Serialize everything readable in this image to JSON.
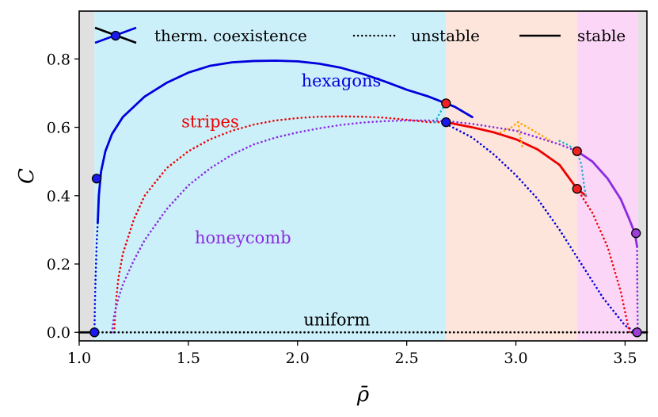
{
  "chart_data": {
    "type": "line",
    "title": "",
    "xlabel": "ρ̄",
    "ylabel": "C",
    "xlim": [
      1.0,
      3.6
    ],
    "ylim": [
      -0.025,
      0.94
    ],
    "x_ticks": [
      1.0,
      1.5,
      2.0,
      2.5,
      3.0,
      3.5
    ],
    "x_tick_labels": [
      "1.0",
      "1.5",
      "2.0",
      "2.5",
      "3.0",
      "3.5"
    ],
    "y_ticks": [
      0.0,
      0.2,
      0.4,
      0.6,
      0.8
    ],
    "y_tick_labels": [
      "0.0",
      "0.2",
      "0.4",
      "0.6",
      "0.8"
    ],
    "grid": false,
    "legend_position": "top",
    "legend": [
      {
        "label": "therm. coexistence",
        "style": "marker"
      },
      {
        "label": "unstable",
        "style": "dotted"
      },
      {
        "label": "stable",
        "style": "solid"
      }
    ],
    "regions": [
      {
        "x0": 1.0,
        "x1": 1.07,
        "color": "#e0e0e0"
      },
      {
        "x0": 1.07,
        "x1": 2.68,
        "color": "#ccf0fa"
      },
      {
        "x0": 2.68,
        "x1": 3.28,
        "color": "#fde5db"
      },
      {
        "x0": 3.28,
        "x1": 3.56,
        "color": "#fcd6f7"
      },
      {
        "x0": 3.56,
        "x1": 3.6,
        "color": "#e0e0e0"
      }
    ],
    "series": [
      {
        "name": "hexagons",
        "color": "#0000dd",
        "segments": [
          {
            "style": "dotted",
            "x": [
              1.07,
              1.072,
              1.075,
              1.08,
              1.085
            ],
            "y": [
              0.0,
              0.08,
              0.16,
              0.26,
              0.32
            ]
          },
          {
            "style": "solid",
            "x": [
              1.085,
              1.09,
              1.1,
              1.12,
              1.15,
              1.2,
              1.3,
              1.4,
              1.5,
              1.6,
              1.7,
              1.8,
              1.9,
              2.0,
              2.1,
              2.2,
              2.3,
              2.4,
              2.5,
              2.6,
              2.68
            ],
            "y": [
              0.32,
              0.4,
              0.47,
              0.53,
              0.58,
              0.63,
              0.69,
              0.73,
              0.76,
              0.78,
              0.79,
              0.794,
              0.795,
              0.793,
              0.786,
              0.774,
              0.756,
              0.734,
              0.71,
              0.69,
              0.67
            ]
          },
          {
            "style": "solid",
            "x": [
              2.68,
              2.72,
              2.76,
              2.8
            ],
            "y": [
              0.67,
              0.66,
              0.645,
              0.63
            ]
          },
          {
            "style": "dotted",
            "x": [
              2.68,
              2.8,
              2.9,
              3.0,
              3.1,
              3.2,
              3.3,
              3.4,
              3.5,
              3.55
            ],
            "y": [
              0.61,
              0.57,
              0.52,
              0.46,
              0.39,
              0.3,
              0.2,
              0.1,
              0.02,
              0.0
            ]
          }
        ]
      },
      {
        "name": "stripes",
        "color": "#ee0000",
        "segments": [
          {
            "style": "dotted",
            "x": [
              1.16,
              1.17,
              1.18,
              1.2,
              1.25,
              1.3,
              1.4,
              1.5,
              1.6,
              1.7,
              1.8,
              1.9,
              2.0,
              2.1,
              2.2,
              2.3,
              2.4,
              2.5,
              2.6,
              2.68
            ],
            "y": [
              0.0,
              0.1,
              0.16,
              0.23,
              0.33,
              0.4,
              0.48,
              0.53,
              0.565,
              0.59,
              0.608,
              0.62,
              0.627,
              0.631,
              0.632,
              0.631,
              0.628,
              0.622,
              0.615,
              0.615
            ]
          },
          {
            "style": "solid",
            "x": [
              2.68,
              2.8,
              2.9,
              3.0,
              3.1,
              3.2,
              3.28,
              3.32
            ],
            "y": [
              0.615,
              0.6,
              0.585,
              0.565,
              0.535,
              0.49,
              0.42,
              0.4
            ]
          },
          {
            "style": "dotted",
            "x": [
              3.28,
              3.35,
              3.42,
              3.48,
              3.5,
              3.52
            ],
            "y": [
              0.42,
              0.35,
              0.25,
              0.12,
              0.06,
              0.0
            ]
          }
        ]
      },
      {
        "name": "honeycomb",
        "color": "#8a2be2",
        "segments": [
          {
            "style": "dotted",
            "x": [
              1.15,
              1.16,
              1.18,
              1.2,
              1.25,
              1.3,
              1.4,
              1.5,
              1.6,
              1.7,
              1.8,
              1.9,
              2.0,
              2.1,
              2.2,
              2.3,
              2.4,
              2.5,
              2.6,
              2.7,
              2.8,
              2.9,
              3.0,
              3.1,
              3.2,
              3.28
            ],
            "y": [
              0.0,
              0.05,
              0.1,
              0.14,
              0.21,
              0.27,
              0.36,
              0.43,
              0.48,
              0.52,
              0.55,
              0.57,
              0.585,
              0.597,
              0.607,
              0.614,
              0.618,
              0.62,
              0.62,
              0.617,
              0.61,
              0.6,
              0.59,
              0.57,
              0.55,
              0.53
            ]
          },
          {
            "style": "solid",
            "x": [
              3.28,
              3.35,
              3.42,
              3.48,
              3.52,
              3.545,
              3.555
            ],
            "y": [
              0.53,
              0.5,
              0.45,
              0.39,
              0.33,
              0.29,
              0.25
            ]
          },
          {
            "style": "dotted",
            "x": [
              3.555,
              3.556,
              3.558
            ],
            "y": [
              0.25,
              0.12,
              0.0
            ]
          }
        ]
      },
      {
        "name": "uniform",
        "color": "#000000",
        "segments": [
          {
            "style": "dotted",
            "x": [
              1.07,
              3.56
            ],
            "y": [
              0.0,
              0.0
            ]
          },
          {
            "style": "solid",
            "x": [
              1.0,
              1.07
            ],
            "y": [
              0.0,
              0.0
            ]
          },
          {
            "style": "solid",
            "x": [
              3.56,
              3.6
            ],
            "y": [
              0.0,
              0.0
            ]
          }
        ]
      },
      {
        "name": "",
        "color": "#20b2c8",
        "segments": [
          {
            "style": "dotted",
            "x": [
              2.63,
              2.65,
              2.68
            ],
            "y": [
              0.615,
              0.64,
              0.67
            ]
          },
          {
            "style": "dotted",
            "x": [
              3.2,
              3.24,
              3.28
            ],
            "y": [
              0.56,
              0.548,
              0.53
            ]
          },
          {
            "style": "dotted",
            "x": [
              3.28,
              3.3,
              3.31,
              3.32
            ],
            "y": [
              0.53,
              0.49,
              0.44,
              0.4
            ]
          }
        ]
      },
      {
        "name": "",
        "color": "#ffa500",
        "segments": [
          {
            "style": "dotted",
            "x": [
              2.93,
              2.98,
              3.01,
              3.04,
              3.08,
              3.12,
              3.16
            ],
            "y": [
              0.585,
              0.6,
              0.615,
              0.605,
              0.59,
              0.575,
              0.56
            ]
          },
          {
            "style": "dotted",
            "x": [
              3.01,
              3.02,
              3.03
            ],
            "y": [
              0.615,
              0.57,
              0.54
            ]
          }
        ]
      }
    ],
    "coexistence_points": [
      {
        "x": 1.07,
        "y": 0.0,
        "face": "#1a1aee"
      },
      {
        "x": 1.08,
        "y": 0.45,
        "face": "#1a1aee"
      },
      {
        "x": 2.68,
        "y": 0.67,
        "face": "#ee2222"
      },
      {
        "x": 2.68,
        "y": 0.615,
        "face": "#1a1aee"
      },
      {
        "x": 3.28,
        "y": 0.53,
        "face": "#ee2222"
      },
      {
        "x": 3.28,
        "y": 0.42,
        "face": "#ee2222"
      },
      {
        "x": 3.55,
        "y": 0.29,
        "face": "#9b3fd6"
      },
      {
        "x": 3.555,
        "y": 0.0,
        "face": "#9b3fd6"
      }
    ],
    "annotations": [
      {
        "text": "hexagons",
        "x": 2.2,
        "y": 0.72,
        "color": "#0000dd"
      },
      {
        "text": "stripes",
        "x": 1.6,
        "y": 0.6,
        "color": "#ee0000"
      },
      {
        "text": "honeycomb",
        "x": 1.75,
        "y": 0.26,
        "color": "#8a2be2"
      },
      {
        "text": "uniform",
        "x": 2.18,
        "y": 0.02,
        "color": "#000000"
      }
    ]
  }
}
